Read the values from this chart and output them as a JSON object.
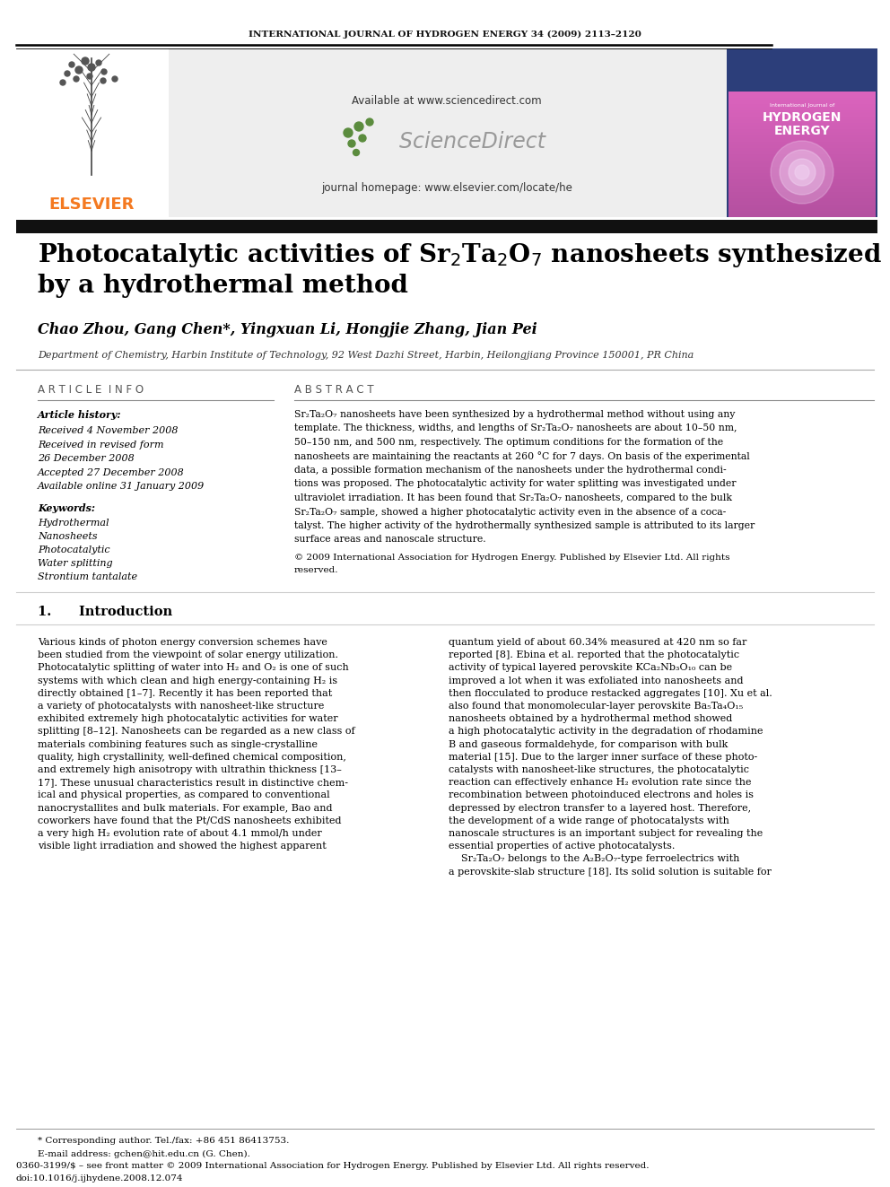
{
  "journal_header": "INTERNATIONAL JOURNAL OF HYDROGEN ENERGY 34 (2009) 2113–2120",
  "title_line1": "Photocatalytic activities of Sr$_2$Ta$_2$O$_7$ nanosheets synthesized",
  "title_line2": "by a hydrothermal method",
  "authors": "Chao Zhou, Gang Chen*, Yingxuan Li, Hongjie Zhang, Jian Pei",
  "affiliation": "Department of Chemistry, Harbin Institute of Technology, 92 West Dazhi Street, Harbin, Heilongjiang Province 150001, PR China",
  "available_at": "Available at www.sciencedirect.com",
  "journal_homepage": "journal homepage: www.elsevier.com/locate/he",
  "elsevier_text": "ELSEVIER",
  "sciencedirect_text": "ScienceDirect",
  "article_info_header": "A R T I C L E  I N F O",
  "abstract_header": "A B S T R A C T",
  "article_history_label": "Article history:",
  "received1": "Received 4 November 2008",
  "received_revised": "Received in revised form",
  "received_revised2": "26 December 2008",
  "accepted": "Accepted 27 December 2008",
  "available_online": "Available online 31 January 2009",
  "keywords_label": "Keywords:",
  "keywords": [
    "Hydrothermal",
    "Nanosheets",
    "Photocatalytic",
    "Water splitting",
    "Strontium tantalate"
  ],
  "copyright_text": "© 2009 International Association for Hydrogen Energy. Published by Elsevier Ltd. All rights reserved.",
  "section1_header": "1.      Introduction",
  "footnote1": "* Corresponding author. Tel./fax: +86 451 86413753.",
  "footnote2": "E-mail address: gchen@hit.edu.cn (G. Chen).",
  "footnote3": "0360-3199/$ – see front matter © 2009 International Association for Hydrogen Energy. Published by Elsevier Ltd. All rights reserved.",
  "footnote4": "doi:10.1016/j.ijhydene.2008.12.074",
  "bg_color": "#ffffff",
  "elsevier_orange": "#f47920",
  "sd_green": "#5b8c3e",
  "blue_dark": "#2c3e7a",
  "abstract_lines": [
    "Sr₂Ta₂O₇ nanosheets have been synthesized by a hydrothermal method without using any",
    "template. The thickness, widths, and lengths of Sr₂Ta₂O₇ nanosheets are about 10–50 nm,",
    "50–150 nm, and 500 nm, respectively. The optimum conditions for the formation of the",
    "nanosheets are maintaining the reactants at 260 °C for 7 days. On basis of the experimental",
    "data, a possible formation mechanism of the nanosheets under the hydrothermal condi-",
    "tions was proposed. The photocatalytic activity for water splitting was investigated under",
    "ultraviolet irradiation. It has been found that Sr₂Ta₂O₇ nanosheets, compared to the bulk",
    "Sr₂Ta₂O₇ sample, showed a higher photocatalytic activity even in the absence of a coca-",
    "talyst. The higher activity of the hydrothermally synthesized sample is attributed to its larger",
    "surface areas and nanoscale structure."
  ],
  "copyright_lines": [
    "© 2009 International Association for Hydrogen Energy. Published by Elsevier Ltd. All rights",
    "reserved."
  ],
  "col1_lines": [
    "Various kinds of photon energy conversion schemes have",
    "been studied from the viewpoint of solar energy utilization.",
    "Photocatalytic splitting of water into H₂ and O₂ is one of such",
    "systems with which clean and high energy-containing H₂ is",
    "directly obtained [1–7]. Recently it has been reported that",
    "a variety of photocatalysts with nanosheet-like structure",
    "exhibited extremely high photocatalytic activities for water",
    "splitting [8–12]. Nanosheets can be regarded as a new class of",
    "materials combining features such as single-crystalline",
    "quality, high crystallinity, well-defined chemical composition,",
    "and extremely high anisotropy with ultrathin thickness [13–",
    "17]. These unusual characteristics result in distinctive chem-",
    "ical and physical properties, as compared to conventional",
    "nanocrystallites and bulk materials. For example, Bao and",
    "coworkers have found that the Pt/CdS nanosheets exhibited",
    "a very high H₂ evolution rate of about 4.1 mmol/h under",
    "visible light irradiation and showed the highest apparent"
  ],
  "col2_lines": [
    "quantum yield of about 60.34% measured at 420 nm so far",
    "reported [8]. Ebina et al. reported that the photocatalytic",
    "activity of typical layered perovskite KCa₂Nb₃O₁₀ can be",
    "improved a lot when it was exfoliated into nanosheets and",
    "then flocculated to produce restacked aggregates [10]. Xu et al.",
    "also found that monomolecular-layer perovskite Ba₅Ta₄O₁₅",
    "nanosheets obtained by a hydrothermal method showed",
    "a high photocatalytic activity in the degradation of rhodamine",
    "B and gaseous formaldehyde, for comparison with bulk",
    "material [15]. Due to the larger inner surface of these photo-",
    "catalysts with nanosheet-like structures, the photocatalytic",
    "reaction can effectively enhance H₂ evolution rate since the",
    "recombination between photoinduced electrons and holes is",
    "depressed by electron transfer to a layered host. Therefore,",
    "the development of a wide range of photocatalysts with",
    "nanoscale structures is an important subject for revealing the",
    "essential properties of active photocatalysts.",
    "    Sr₂Ta₂O₇ belongs to the A₂B₂O₇-type ferroelectrics with",
    "a perovskite-slab structure [18]. Its solid solution is suitable for"
  ]
}
